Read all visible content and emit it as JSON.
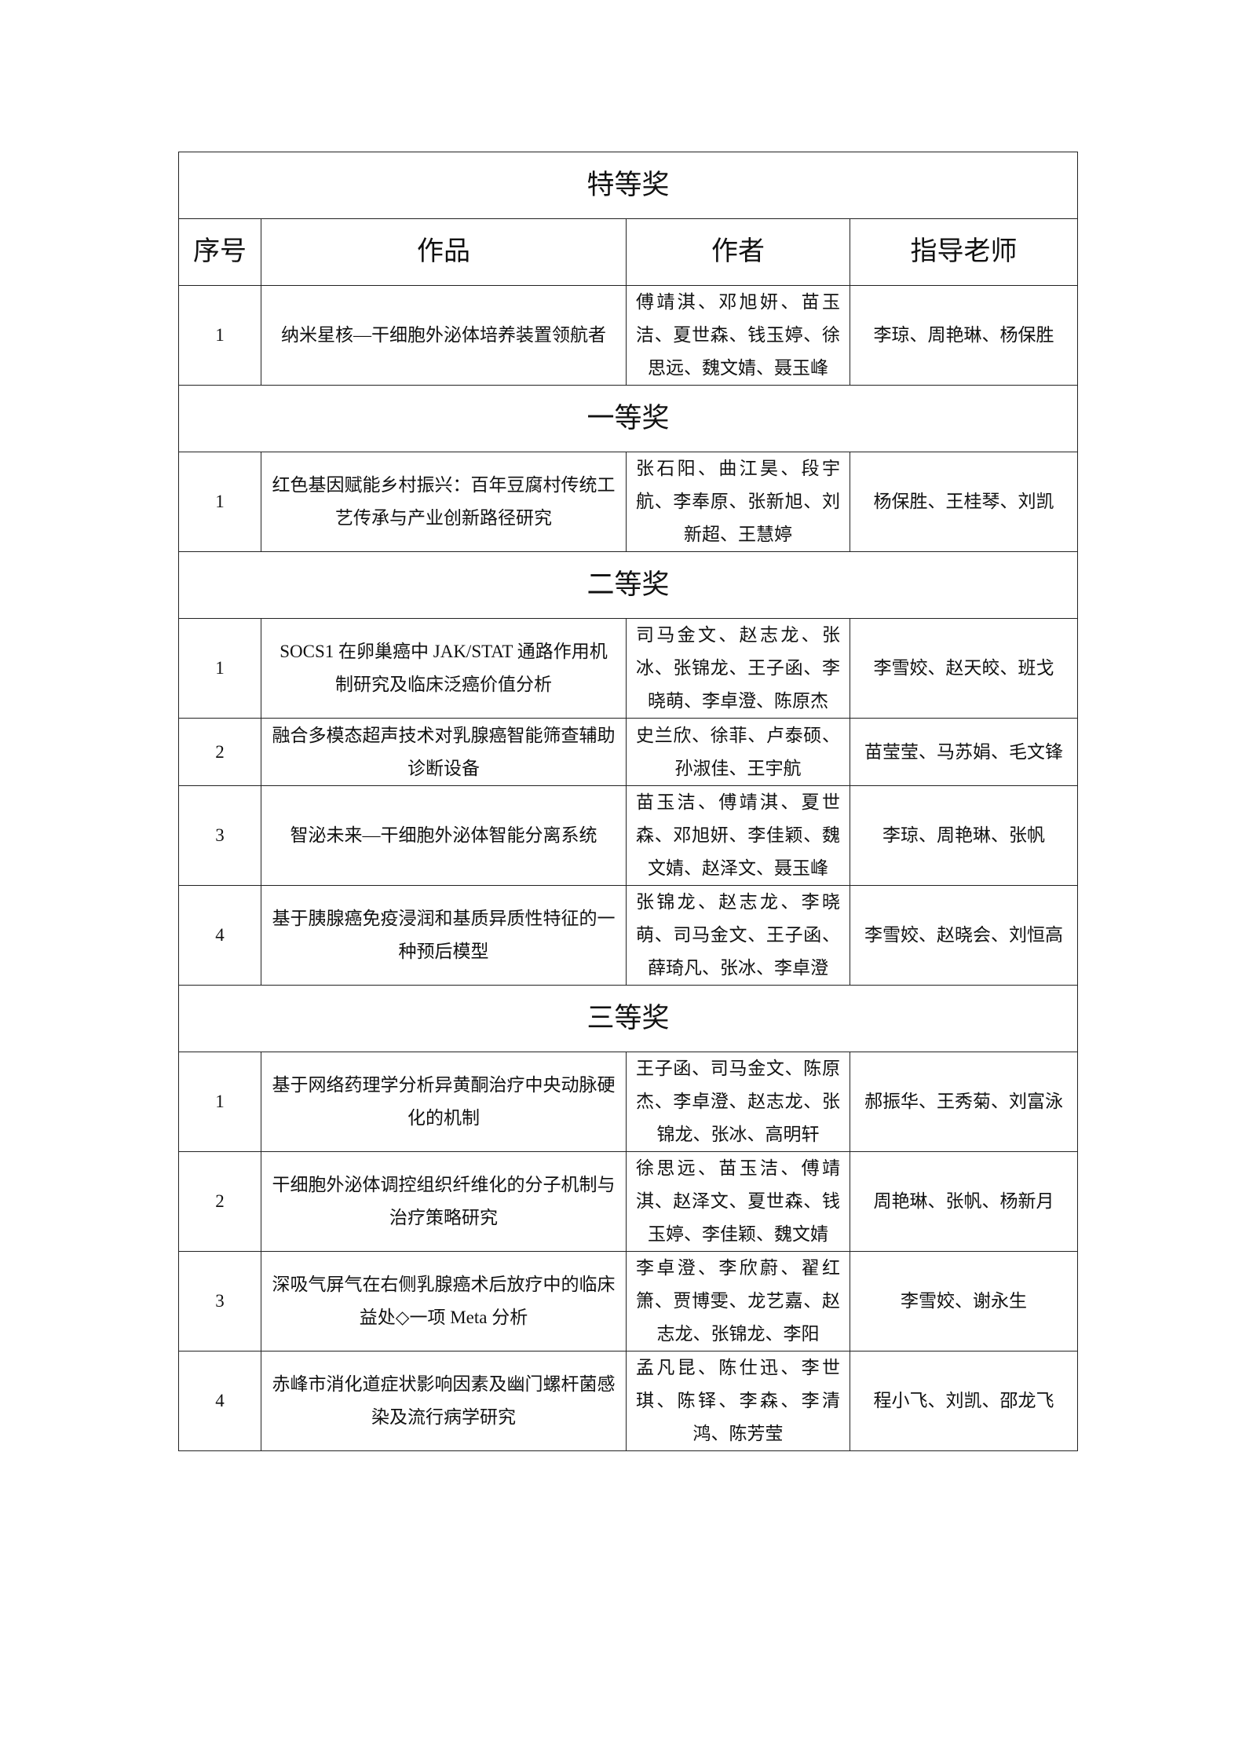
{
  "headers": [
    "序号",
    "作品",
    "作者",
    "指导老师"
  ],
  "sections": [
    {
      "title": "特等奖",
      "rows": [
        {
          "no": "1",
          "work": "纳米星核—干细胞外泌体培养装置领航者",
          "authors": "傅靖淇、邓旭妍、苗玉洁、夏世森、钱玉婷、徐思远、魏文婧、聂玉峰",
          "advisors": "李琼、周艳琳、杨保胜"
        }
      ]
    },
    {
      "title": "一等奖",
      "rows": [
        {
          "no": "1",
          "work": "红色基因赋能乡村振兴：百年豆腐村传统工艺传承与产业创新路径研究",
          "authors": "张石阳、曲江昊、段宇航、李奉原、张新旭、刘新超、王慧婷",
          "advisors": "杨保胜、王桂琴、刘凯"
        }
      ]
    },
    {
      "title": "二等奖",
      "rows": [
        {
          "no": "1",
          "work": "SOCS1 在卵巢癌中 JAK/STAT 通路作用机制研究及临床泛癌价值分析",
          "authors": "司马金文、赵志龙、张冰、张锦龙、王子函、李晓萌、李卓澄、陈原杰",
          "advisors": "李雪姣、赵天皎、班戈"
        },
        {
          "no": "2",
          "work": "融合多模态超声技术对乳腺癌智能筛查辅助诊断设备",
          "authors": "史兰欣、徐菲、卢泰硕、孙淑佳、王宇航",
          "advisors": "苗莹莹、马苏娟、毛文锋"
        },
        {
          "no": "3",
          "work": "智泌未来—干细胞外泌体智能分离系统",
          "authors": "苗玉洁、傅靖淇、夏世森、邓旭妍、李佳颖、魏文婧、赵泽文、聂玉峰",
          "advisors": "李琼、周艳琳、张帆"
        },
        {
          "no": "4",
          "work": "基于胰腺癌免疫浸润和基质异质性特征的一种预后模型",
          "authors": "张锦龙、赵志龙、李晓萌、司马金文、王子函、薛琦凡、张冰、李卓澄",
          "advisors": "李雪姣、赵晓会、刘恒高"
        }
      ]
    },
    {
      "title": "三等奖",
      "rows": [
        {
          "no": "1",
          "work": "基于网络药理学分析异黄酮治疗中央动脉硬化的机制",
          "authors": "王子函、司马金文、陈原杰、李卓澄、赵志龙、张锦龙、张冰、高明轩",
          "advisors": "郝振华、王秀菊、刘富泳"
        },
        {
          "no": "2",
          "work": "干细胞外泌体调控组织纤维化的分子机制与治疗策略研究",
          "authors": "徐思远、苗玉洁、傅靖淇、赵泽文、夏世森、钱玉婷、李佳颖、魏文婧",
          "advisors": "周艳琳、张帆、杨新月"
        },
        {
          "no": "3",
          "work": "深吸气屏气在右侧乳腺癌术后放疗中的临床益处◇一项 Meta 分析",
          "authors": "李卓澄、李欣蔚、翟红箫、贾博雯、龙艺嘉、赵志龙、张锦龙、李阳",
          "advisors": "李雪姣、谢永生"
        },
        {
          "no": "4",
          "work": "赤峰市消化道症状影响因素及幽门螺杆菌感染及流行病学研究",
          "authors": "孟凡昆、陈仕迅、李世琪、陈铎、李森、李清鸿、陈芳莹",
          "advisors": "程小飞、刘凯、邵龙飞"
        }
      ]
    }
  ]
}
